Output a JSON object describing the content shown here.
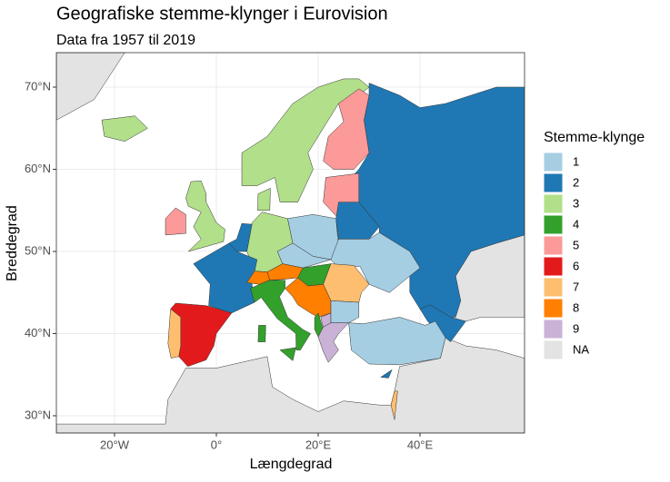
{
  "title": "Geografiske stemme-klynger i Eurovision",
  "subtitle": "Data fra 1957 til 2019",
  "x_axis": {
    "label": "Længdegrad",
    "ticks": [
      {
        "value": -20,
        "label": "20°W"
      },
      {
        "value": 0,
        "label": "0°"
      },
      {
        "value": 20,
        "label": "20°E"
      },
      {
        "value": 40,
        "label": "40°E"
      }
    ]
  },
  "y_axis": {
    "label": "Breddegrad",
    "ticks": [
      {
        "value": 30,
        "label": "30°N"
      },
      {
        "value": 40,
        "label": "40°N"
      },
      {
        "value": 50,
        "label": "50°N"
      },
      {
        "value": 60,
        "label": "60°N"
      },
      {
        "value": 70,
        "label": "70°N"
      }
    ]
  },
  "legend": {
    "title": "Stemme-klynge",
    "items": [
      {
        "label": "1",
        "color": "#a6cee3"
      },
      {
        "label": "2",
        "color": "#1f78b4"
      },
      {
        "label": "3",
        "color": "#b2df8a"
      },
      {
        "label": "4",
        "color": "#33a02c"
      },
      {
        "label": "5",
        "color": "#fb9a99"
      },
      {
        "label": "6",
        "color": "#e31a1c"
      },
      {
        "label": "7",
        "color": "#fdbf6f"
      },
      {
        "label": "8",
        "color": "#ff7f00"
      },
      {
        "label": "9",
        "color": "#cab2d6"
      },
      {
        "label": "NA",
        "color": "#e3e3e3"
      }
    ]
  }
}
